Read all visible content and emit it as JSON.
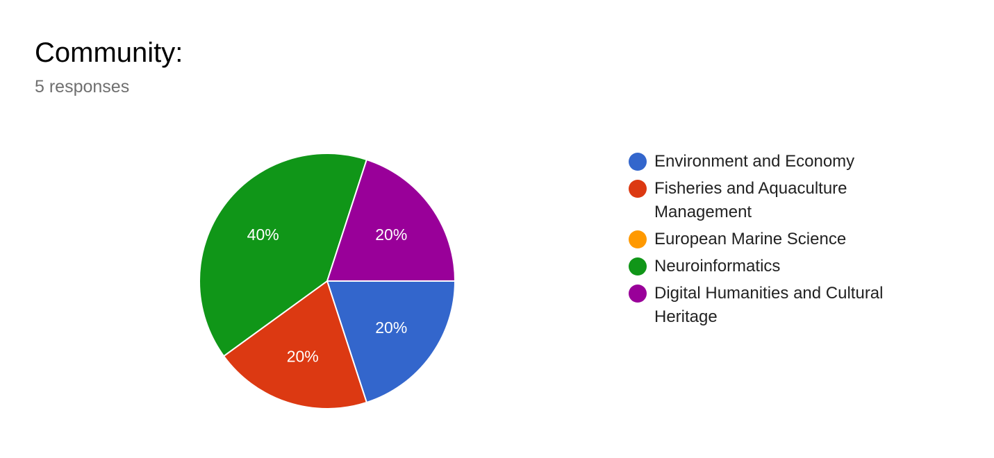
{
  "header": {
    "title": "Community:",
    "subtitle": "5 responses"
  },
  "chart_data": {
    "type": "pie",
    "categories": [
      "Environment and Economy",
      "Fisheries and Aquaculture Management",
      "European Marine Science",
      "Neuroinformatics",
      "Digital Humanities and Cultural Heritage"
    ],
    "values": [
      1,
      1,
      0,
      2,
      1
    ],
    "percent_labels": [
      "20%",
      "20%",
      "",
      "40%",
      "20%"
    ],
    "colors": [
      "#3366cc",
      "#dc3912",
      "#ff9900",
      "#109618",
      "#990099"
    ],
    "legend_position": "right"
  }
}
